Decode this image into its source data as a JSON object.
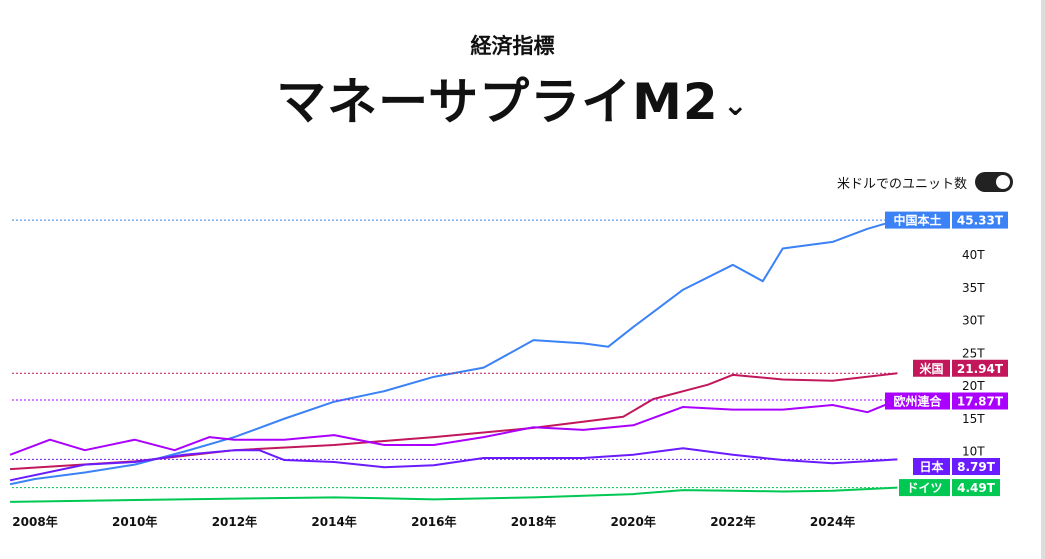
{
  "header": {
    "subtitle": "経済指標",
    "title": "マネーサプライM2",
    "chevron": "⌄"
  },
  "toggle": {
    "label": "米ドルでのユニット数",
    "on": true
  },
  "chart_data": {
    "type": "line",
    "ylim": [
      0,
      47
    ],
    "xlim": [
      2007.5,
      2025.6
    ],
    "y_ticks": [
      "10T",
      "15T",
      "20T",
      "25T",
      "30T",
      "35T",
      "40T"
    ],
    "y_tick_values": [
      10,
      15,
      20,
      25,
      30,
      35,
      40
    ],
    "x_ticks": [
      "2008年",
      "2010年",
      "2012年",
      "2014年",
      "2016年",
      "2018年",
      "2020年",
      "2022年",
      "2024年"
    ],
    "x_tick_values": [
      2008,
      2010,
      2012,
      2014,
      2016,
      2018,
      2020,
      2022,
      2024
    ],
    "series": [
      {
        "name": "中国本土",
        "last": "45.33T",
        "color": "#3b82f6",
        "x": [
          2007.5,
          2008,
          2009,
          2010,
          2011,
          2012,
          2013,
          2014,
          2015,
          2016,
          2017,
          2018,
          2019,
          2019.5,
          2020,
          2021,
          2022,
          2022.6,
          2023,
          2024,
          2024.7,
          2025.3
        ],
        "y": [
          5.0,
          5.8,
          6.8,
          8.0,
          10.0,
          12.2,
          15.0,
          17.6,
          19.2,
          21.4,
          22.8,
          27.0,
          26.5,
          26.0,
          29.0,
          34.7,
          38.5,
          36.0,
          41.0,
          42.0,
          44.0,
          45.33
        ]
      },
      {
        "name": "米国",
        "last": "21.94T",
        "color": "#c2185b",
        "x": [
          2007.5,
          2010,
          2012,
          2014,
          2016,
          2018,
          2019.8,
          2020.4,
          2021.5,
          2022,
          2023,
          2024,
          2025.3
        ],
        "y": [
          7.3,
          8.5,
          10.2,
          11.0,
          12.2,
          13.6,
          15.3,
          18.0,
          20.2,
          21.7,
          21.0,
          20.8,
          21.94
        ]
      },
      {
        "name": "欧州連合",
        "last": "17.87T",
        "color": "#aa00ff",
        "x": [
          2007.5,
          2008.3,
          2009,
          2010,
          2010.8,
          2011.5,
          2012,
          2013,
          2014,
          2015,
          2016,
          2017,
          2018,
          2019,
          2020,
          2021,
          2022,
          2023,
          2024,
          2024.7,
          2025.3
        ],
        "y": [
          9.5,
          11.8,
          10.2,
          11.8,
          10.2,
          12.2,
          11.8,
          11.8,
          12.5,
          11.0,
          11.0,
          12.2,
          13.7,
          13.3,
          14.0,
          16.8,
          16.4,
          16.4,
          17.1,
          16.0,
          17.87
        ]
      },
      {
        "name": "日本",
        "last": "8.79T",
        "color": "#6a1bff",
        "x": [
          2007.5,
          2009,
          2010,
          2011,
          2012,
          2012.5,
          2013,
          2014,
          2015,
          2016,
          2017,
          2018,
          2019,
          2020,
          2021,
          2022,
          2023,
          2024,
          2025.3
        ],
        "y": [
          5.6,
          8.0,
          8.4,
          9.5,
          10.2,
          10.2,
          8.7,
          8.4,
          7.6,
          7.9,
          9.0,
          9.0,
          9.0,
          9.5,
          10.5,
          9.5,
          8.7,
          8.2,
          8.79
        ]
      },
      {
        "name": "ドイツ",
        "last": "4.49T",
        "color": "#00c853",
        "x": [
          2007.5,
          2010,
          2012,
          2014,
          2016,
          2018,
          2020,
          2021,
          2022,
          2023,
          2024,
          2025.3
        ],
        "y": [
          2.3,
          2.6,
          2.8,
          3.0,
          2.7,
          3.0,
          3.5,
          4.1,
          4.0,
          3.9,
          4.0,
          4.49
        ]
      }
    ]
  }
}
